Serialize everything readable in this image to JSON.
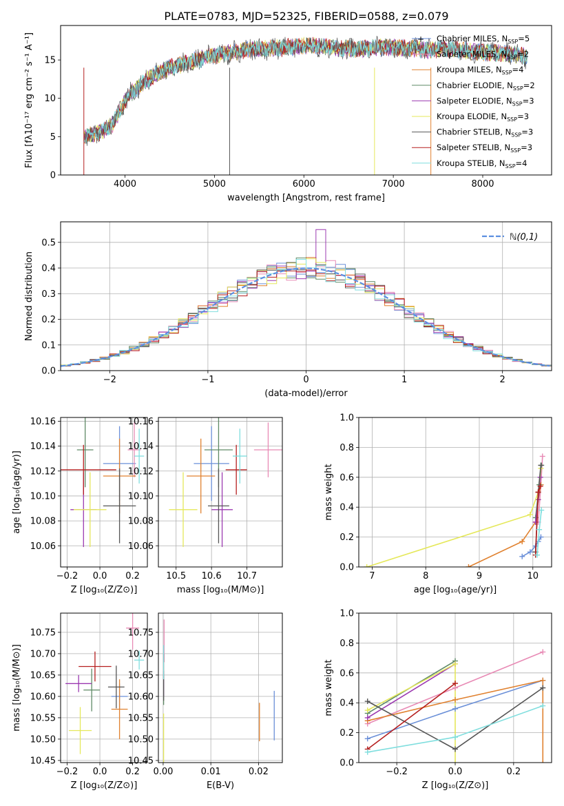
{
  "figure_title": "PLATE=0783, MJD=52325, FIBERID=0588, z=0.079",
  "series_styles": [
    {
      "key": "cm",
      "color": "#6a8fd8"
    },
    {
      "key": "sm",
      "color": "#e88ab5"
    },
    {
      "key": "km",
      "color": "#e0812f"
    },
    {
      "key": "ce",
      "color": "#5f8a66"
    },
    {
      "key": "se",
      "color": "#9b39b0"
    },
    {
      "key": "ke",
      "color": "#e5e85a"
    },
    {
      "key": "cs",
      "color": "#555555"
    },
    {
      "key": "ss",
      "color": "#b51e1e"
    },
    {
      "key": "ks",
      "color": "#7fdede"
    }
  ],
  "chart_data": [
    {
      "id": "spectrum",
      "type": "line",
      "xlabel": "wavelength [Angstrom, rest frame]",
      "ylabel": "Flux [fλ10⁻¹⁷ erg cm⁻² s⁻¹ A⁻¹]",
      "xlim": [
        3280,
        8770
      ],
      "ylim": [
        0,
        19.5
      ],
      "xticks": [
        4000,
        5000,
        6000,
        7000,
        8000
      ],
      "yticks": [
        0,
        5,
        10,
        15
      ],
      "legend_position": "upper-right",
      "legend": [
        "Chabrier MILES, N_SSP=5",
        "Salpeter MILES, N_SSP=2",
        "Kroupa MILES, N_SSP=4",
        "Chabrier ELODIE, N_SSP=2",
        "Salpeter ELODIE, N_SSP=3",
        "Kroupa ELODIE, N_SSP=3",
        "Chabrier STELIB, N_SSP=3",
        "Salpeter STELIB, N_SSP=3",
        "Kroupa STELIB, N_SSP=4"
      ],
      "data_curve": {
        "x": [
          3550,
          3700,
          3850,
          3950,
          4050,
          4200,
          4350,
          4500,
          4650,
          4800,
          5000,
          5200,
          5400,
          5600,
          5800,
          6000,
          6200,
          6400,
          6600,
          6800,
          7000,
          7200,
          7400,
          7600,
          7800,
          8000,
          8200,
          8400,
          8500
        ],
        "y": [
          5.0,
          5.5,
          6.5,
          8.5,
          10.5,
          12.0,
          13.2,
          14.0,
          14.5,
          15.0,
          15.6,
          16.0,
          16.4,
          16.5,
          16.6,
          16.9,
          16.8,
          16.5,
          16.4,
          16.7,
          16.6,
          16.5,
          16.3,
          16.5,
          16.2,
          16.0,
          15.9,
          15.7,
          15.3
        ]
      }
    },
    {
      "id": "residuals",
      "type": "histogram",
      "xlabel": "(data-model)/error",
      "ylabel": "Normed distribution",
      "xlim": [
        -2.5,
        2.5
      ],
      "ylim": [
        0,
        0.58
      ],
      "xticks": [
        -2,
        -1,
        0,
        1,
        2
      ],
      "yticks": [
        0.0,
        0.1,
        0.2,
        0.3,
        0.4,
        0.5
      ],
      "reference_curve": "ℕ(0,1)",
      "legend_position": "upper-right",
      "bin_width": 0.1
    },
    {
      "id": "age_vs_Z",
      "type": "errorbar",
      "xlabel": "Z [log₁₀(Z/Z⊙)]",
      "ylabel": "age  [log₁₀(age/yr)]",
      "xlim": [
        -0.24,
        0.29
      ],
      "ylim": [
        10.043,
        10.163
      ],
      "xticks": [
        -0.2,
        0.0,
        0.2
      ],
      "yticks": [
        10.06,
        10.08,
        10.1,
        10.12,
        10.14,
        10.16
      ],
      "points": [
        {
          "series": "cm",
          "x": 0.12,
          "y": 10.126,
          "xerr": 0.1,
          "yerr": 0.03
        },
        {
          "series": "sm",
          "x": 0.21,
          "y": 10.137,
          "xerr": 0.04,
          "yerr": 0.022
        },
        {
          "series": "km",
          "x": 0.12,
          "y": 10.116,
          "xerr": 0.1,
          "yerr": 0.03
        },
        {
          "series": "ce",
          "x": -0.09,
          "y": 10.137,
          "xerr": 0.05,
          "yerr": 0.03
        },
        {
          "series": "se",
          "x": -0.1,
          "y": 10.089,
          "xerr": 0.08,
          "yerr": 0.03
        },
        {
          "series": "ke",
          "x": -0.06,
          "y": 10.089,
          "xerr": 0.1,
          "yerr": 0.03
        },
        {
          "series": "cs",
          "x": 0.12,
          "y": 10.092,
          "xerr": 0.1,
          "yerr": 0.03
        },
        {
          "series": "ss",
          "x": -0.1,
          "y": 10.121,
          "xerr": 0.2,
          "yerr": 0.02
        },
        {
          "series": "ks",
          "x": 0.24,
          "y": 10.132,
          "xerr": 0.03,
          "yerr": 0.022
        }
      ]
    },
    {
      "id": "age_vs_mass",
      "type": "errorbar",
      "xlabel": "mass [log₁₀(M/M⊙)]",
      "xlim": [
        10.45,
        10.8
      ],
      "ylim": [
        10.043,
        10.163
      ],
      "xticks": [
        10.5,
        10.6,
        10.7
      ],
      "yticks": [
        10.06,
        10.08,
        10.1,
        10.12,
        10.14,
        10.16
      ],
      "points": [
        {
          "series": "cm",
          "x": 10.6,
          "y": 10.126,
          "xerr": 0.05,
          "yerr": 0.03
        },
        {
          "series": "sm",
          "x": 10.76,
          "y": 10.137,
          "xerr": 0.04,
          "yerr": 0.022
        },
        {
          "series": "km",
          "x": 10.57,
          "y": 10.116,
          "xerr": 0.04,
          "yerr": 0.03
        },
        {
          "series": "ce",
          "x": 10.62,
          "y": 10.137,
          "xerr": 0.04,
          "yerr": 0.03
        },
        {
          "series": "se",
          "x": 10.63,
          "y": 10.089,
          "xerr": 0.03,
          "yerr": 0.03
        },
        {
          "series": "ke",
          "x": 10.52,
          "y": 10.089,
          "xerr": 0.04,
          "yerr": 0.03
        },
        {
          "series": "cs",
          "x": 10.62,
          "y": 10.092,
          "xerr": 0.03,
          "yerr": 0.03
        },
        {
          "series": "ss",
          "x": 10.67,
          "y": 10.121,
          "xerr": 0.03,
          "yerr": 0.02
        },
        {
          "series": "ks",
          "x": 10.68,
          "y": 10.132,
          "xerr": 0.02,
          "yerr": 0.022
        }
      ]
    },
    {
      "id": "massweight_vs_age",
      "type": "line",
      "xlabel": "age  [log₁₀(age/yr)]",
      "ylabel": "mass weight",
      "xlim": [
        6.75,
        10.35
      ],
      "ylim": [
        0,
        1
      ],
      "xticks": [
        7,
        8,
        9,
        10
      ],
      "yticks": [
        0.0,
        0.2,
        0.4,
        0.6,
        0.8,
        1.0
      ],
      "series": [
        {
          "series": "cm",
          "x": [
            9.8,
            9.95,
            10.05,
            10.1,
            10.15
          ],
          "y": [
            0.07,
            0.1,
            0.14,
            0.17,
            0.2
          ]
        },
        {
          "series": "sm",
          "x": [
            10.1,
            10.15,
            10.18
          ],
          "y": [
            0.3,
            0.55,
            0.74
          ]
        },
        {
          "series": "km",
          "x": [
            8.8,
            9.8,
            10.05,
            10.1,
            10.15
          ],
          "y": [
            0.0,
            0.17,
            0.3,
            0.45,
            0.55
          ]
        },
        {
          "series": "ce",
          "x": [
            10.05,
            10.12,
            10.16
          ],
          "y": [
            0.33,
            0.55,
            0.68
          ]
        },
        {
          "series": "se",
          "x": [
            10.05,
            10.1,
            10.14
          ],
          "y": [
            0.3,
            0.45,
            0.6
          ]
        },
        {
          "series": "ke",
          "x": [
            6.9,
            9.95,
            10.1,
            10.15
          ],
          "y": [
            0.0,
            0.35,
            0.5,
            0.66
          ]
        },
        {
          "series": "cs",
          "x": [
            10.05,
            10.1,
            10.15
          ],
          "y": [
            0.1,
            0.5,
            0.68
          ]
        },
        {
          "series": "ss",
          "x": [
            10.05,
            10.1,
            10.14
          ],
          "y": [
            0.08,
            0.5,
            0.54
          ]
        },
        {
          "series": "ks",
          "x": [
            10.08,
            10.12,
            10.16
          ],
          "y": [
            0.08,
            0.25,
            0.38
          ]
        }
      ]
    },
    {
      "id": "mass_vs_Z",
      "type": "errorbar",
      "xlabel": "Z [log₁₀(Z/Z⊙)]",
      "ylabel": "mass [log₁₀(M/M⊙)]",
      "xlim": [
        -0.24,
        0.29
      ],
      "ylim": [
        10.445,
        10.795
      ],
      "xticks": [
        -0.2,
        0.0,
        0.2
      ],
      "yticks": [
        10.45,
        10.5,
        10.55,
        10.6,
        10.65,
        10.7,
        10.75
      ],
      "points": [
        {
          "series": "cm",
          "x": 0.12,
          "y": 10.6,
          "xerr": 0.05,
          "yerr": 0.03
        },
        {
          "series": "sm",
          "x": 0.2,
          "y": 10.76,
          "xerr": 0.04,
          "yerr": 0.05
        },
        {
          "series": "km",
          "x": 0.12,
          "y": 10.57,
          "xerr": 0.05,
          "yerr": 0.07
        },
        {
          "series": "ce",
          "x": -0.05,
          "y": 10.615,
          "xerr": 0.05,
          "yerr": 0.05
        },
        {
          "series": "se",
          "x": -0.13,
          "y": 10.63,
          "xerr": 0.08,
          "yerr": 0.02
        },
        {
          "series": "ke",
          "x": -0.12,
          "y": 10.52,
          "xerr": 0.07,
          "yerr": 0.055
        },
        {
          "series": "cs",
          "x": 0.1,
          "y": 10.622,
          "xerr": 0.05,
          "yerr": 0.05
        },
        {
          "series": "ss",
          "x": -0.03,
          "y": 10.67,
          "xerr": 0.1,
          "yerr": 0.035
        },
        {
          "series": "ks",
          "x": 0.24,
          "y": 10.685,
          "xerr": 0.03,
          "yerr": 0.022
        }
      ]
    },
    {
      "id": "mass_vs_ebv",
      "type": "errorbar",
      "xlabel": "E(B-V)",
      "xlim": [
        -0.001,
        0.025
      ],
      "ylim": [
        10.445,
        10.795
      ],
      "xticks": [
        0.0,
        0.01,
        0.02
      ],
      "yticks": [
        10.45,
        10.5,
        10.55,
        10.6,
        10.65,
        10.7,
        10.75
      ],
      "points": [
        {
          "series": "cm",
          "x": 0.0233,
          "y": 10.555,
          "xerr": 0,
          "yerr": 0.058
        },
        {
          "series": "sm",
          "x": 0.0002,
          "y": 10.73,
          "xerr": 0,
          "yerr": 0.05
        },
        {
          "series": "km",
          "x": 0.0202,
          "y": 10.54,
          "xerr": 0,
          "yerr": 0.045
        },
        {
          "series": "ce",
          "x": 0.0001,
          "y": 10.62,
          "xerr": 0,
          "yerr": 0.04
        },
        {
          "series": "se",
          "x": 0.0001,
          "y": 10.63,
          "xerr": 0,
          "yerr": 0.03
        },
        {
          "series": "ke",
          "x": 0.0001,
          "y": 10.5,
          "xerr": 0,
          "yerr": 0.06
        },
        {
          "series": "cs",
          "x": 0.0001,
          "y": 10.62,
          "xerr": 0,
          "yerr": 0.03
        },
        {
          "series": "ss",
          "x": 0.0001,
          "y": 10.67,
          "xerr": 0,
          "yerr": 0.03
        },
        {
          "series": "ks",
          "x": 0.0001,
          "y": 10.68,
          "xerr": 0,
          "yerr": 0.04
        }
      ]
    },
    {
      "id": "massweight_vs_Z",
      "type": "line",
      "xlabel": "Z [log₁₀(Z/Z⊙)]",
      "ylabel": "mass weight",
      "xlim": [
        -0.33,
        0.33
      ],
      "ylim": [
        0,
        1
      ],
      "xticks": [
        -0.2,
        0.0,
        0.2
      ],
      "yticks": [
        0.0,
        0.2,
        0.4,
        0.6,
        0.8,
        1.0
      ],
      "series": [
        {
          "series": "cm",
          "x": [
            -0.3,
            0.0,
            0.3
          ],
          "y": [
            0.16,
            0.36,
            0.55
          ]
        },
        {
          "series": "sm",
          "x": [
            -0.3,
            0.0,
            0.3
          ],
          "y": [
            0.26,
            0.5,
            0.74
          ]
        },
        {
          "series": "km",
          "x": [
            -0.3,
            0.0,
            0.3
          ],
          "y": [
            0.28,
            0.42,
            0.55
          ]
        },
        {
          "series": "ce",
          "x": [
            -0.3,
            0.0
          ],
          "y": [
            0.33,
            0.68
          ]
        },
        {
          "series": "se",
          "x": [
            -0.3,
            0.0
          ],
          "y": [
            0.3,
            0.66
          ]
        },
        {
          "series": "ke",
          "x": [
            -0.3,
            0.0
          ],
          "y": [
            0.35,
            0.66
          ]
        },
        {
          "series": "cs",
          "x": [
            -0.3,
            0.0,
            0.3
          ],
          "y": [
            0.41,
            0.09,
            0.5
          ]
        },
        {
          "series": "ss",
          "x": [
            -0.3,
            0.0
          ],
          "y": [
            0.09,
            0.53
          ]
        },
        {
          "series": "ks",
          "x": [
            -0.3,
            0.0,
            0.3
          ],
          "y": [
            0.07,
            0.17,
            0.38
          ]
        }
      ],
      "verticals": [
        {
          "series": "km",
          "x": 0.3,
          "y": [
            0.0,
            0.55
          ]
        },
        {
          "series": "ke",
          "x": 0.0,
          "y": [
            0.0,
            0.66
          ]
        }
      ]
    }
  ]
}
